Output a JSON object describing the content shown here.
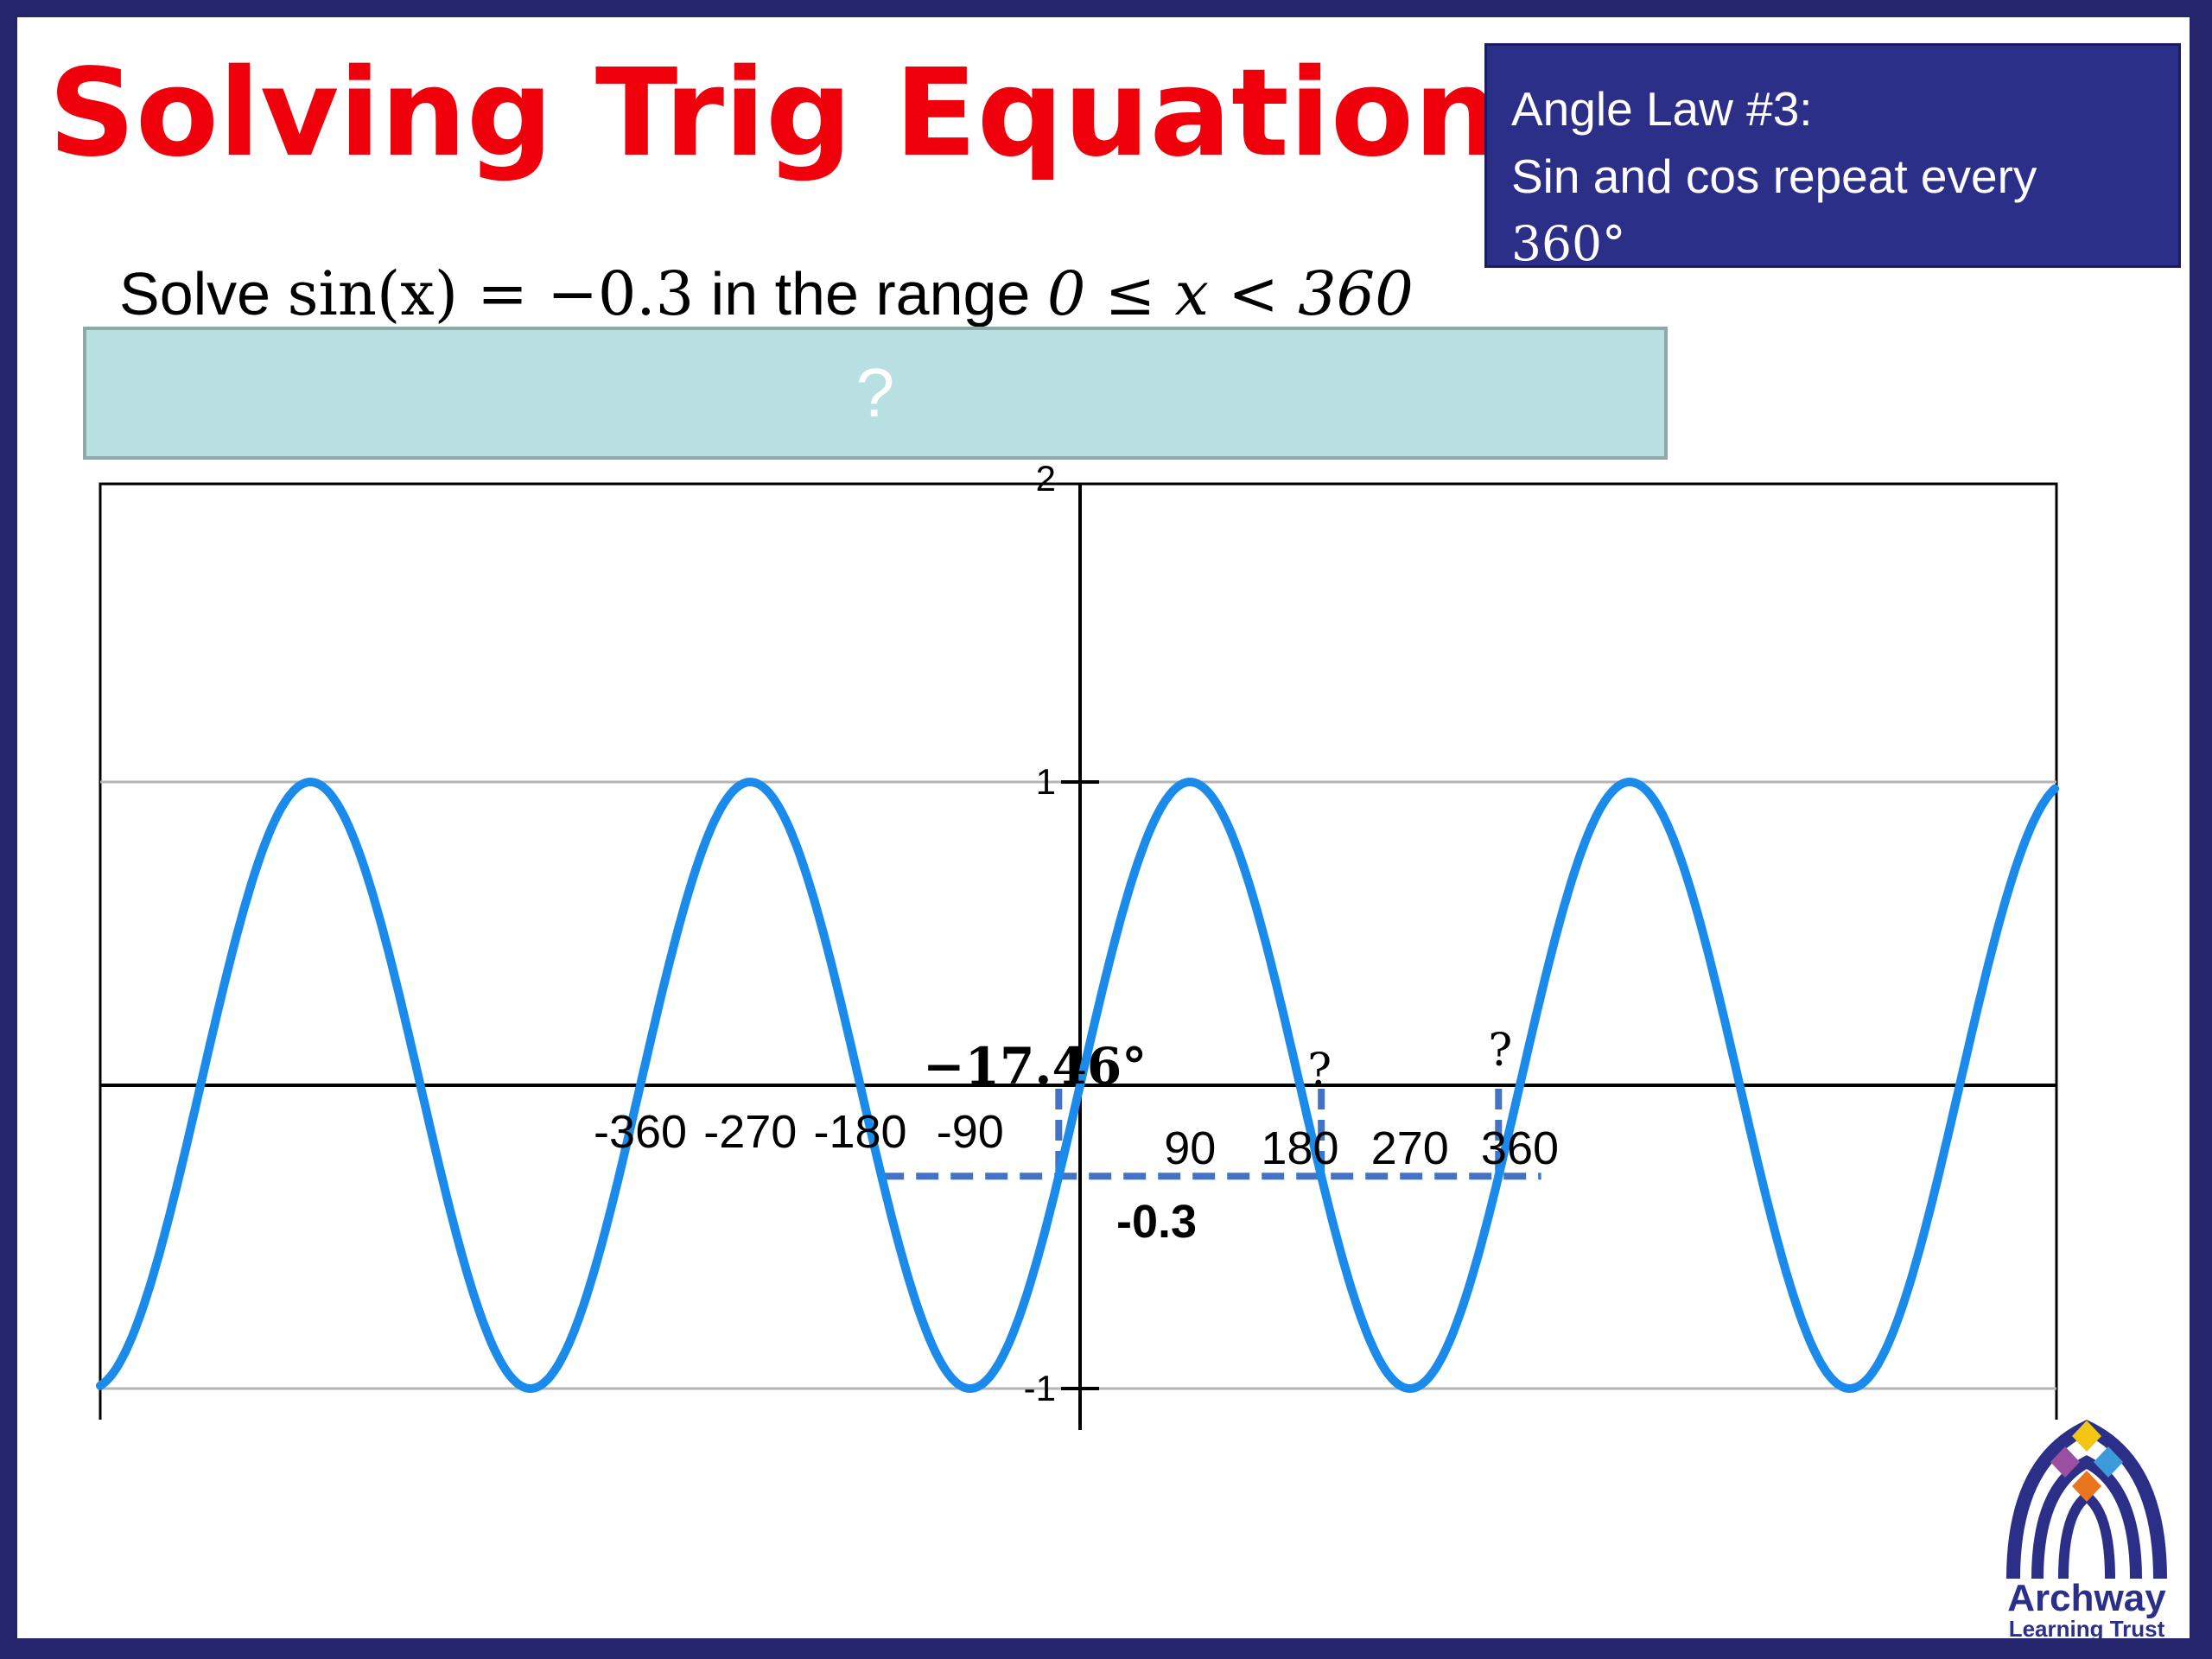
{
  "title": "Solving Trig Equations",
  "angle_law": {
    "line1": "Angle Law #3:",
    "line2": "Sin and cos repeat every",
    "line3": "360°"
  },
  "question": {
    "prefix": "Solve ",
    "equation": "sin(x) = −0.3",
    "middle": " in the range ",
    "range": "0 ≤ x < 360"
  },
  "answer_box": {
    "text": "?"
  },
  "logo": {
    "line1": "Archway",
    "line2": "Learning Trust"
  },
  "colors": {
    "title": "#f0000b",
    "law_box_bg": "#2b2f88",
    "border": "#25256e",
    "answer_box_bg": "#b8dfe2",
    "curve": "#1a8bea",
    "dashed": "#4472c4"
  },
  "chart_data": {
    "type": "line",
    "function": "sin(x)",
    "xlim": [
      -450,
      450
    ],
    "ylim": [
      -1,
      2
    ],
    "x_ticks": [
      -360,
      -270,
      -180,
      -90,
      90,
      180,
      270,
      360
    ],
    "y_ticks": [
      -1,
      1,
      2
    ],
    "grid": "horizontal lines at y = 1 and y = -1",
    "horizontal_line": {
      "y": -0.3,
      "label": "-0.3",
      "from_x": -162.54,
      "to_x": 377.46,
      "style": "dashed"
    },
    "solutions": [
      {
        "x": -17.46,
        "label": "−17.46°"
      },
      {
        "x": 197.46,
        "label": "?"
      },
      {
        "x": 342.54,
        "label": "?"
      }
    ]
  }
}
